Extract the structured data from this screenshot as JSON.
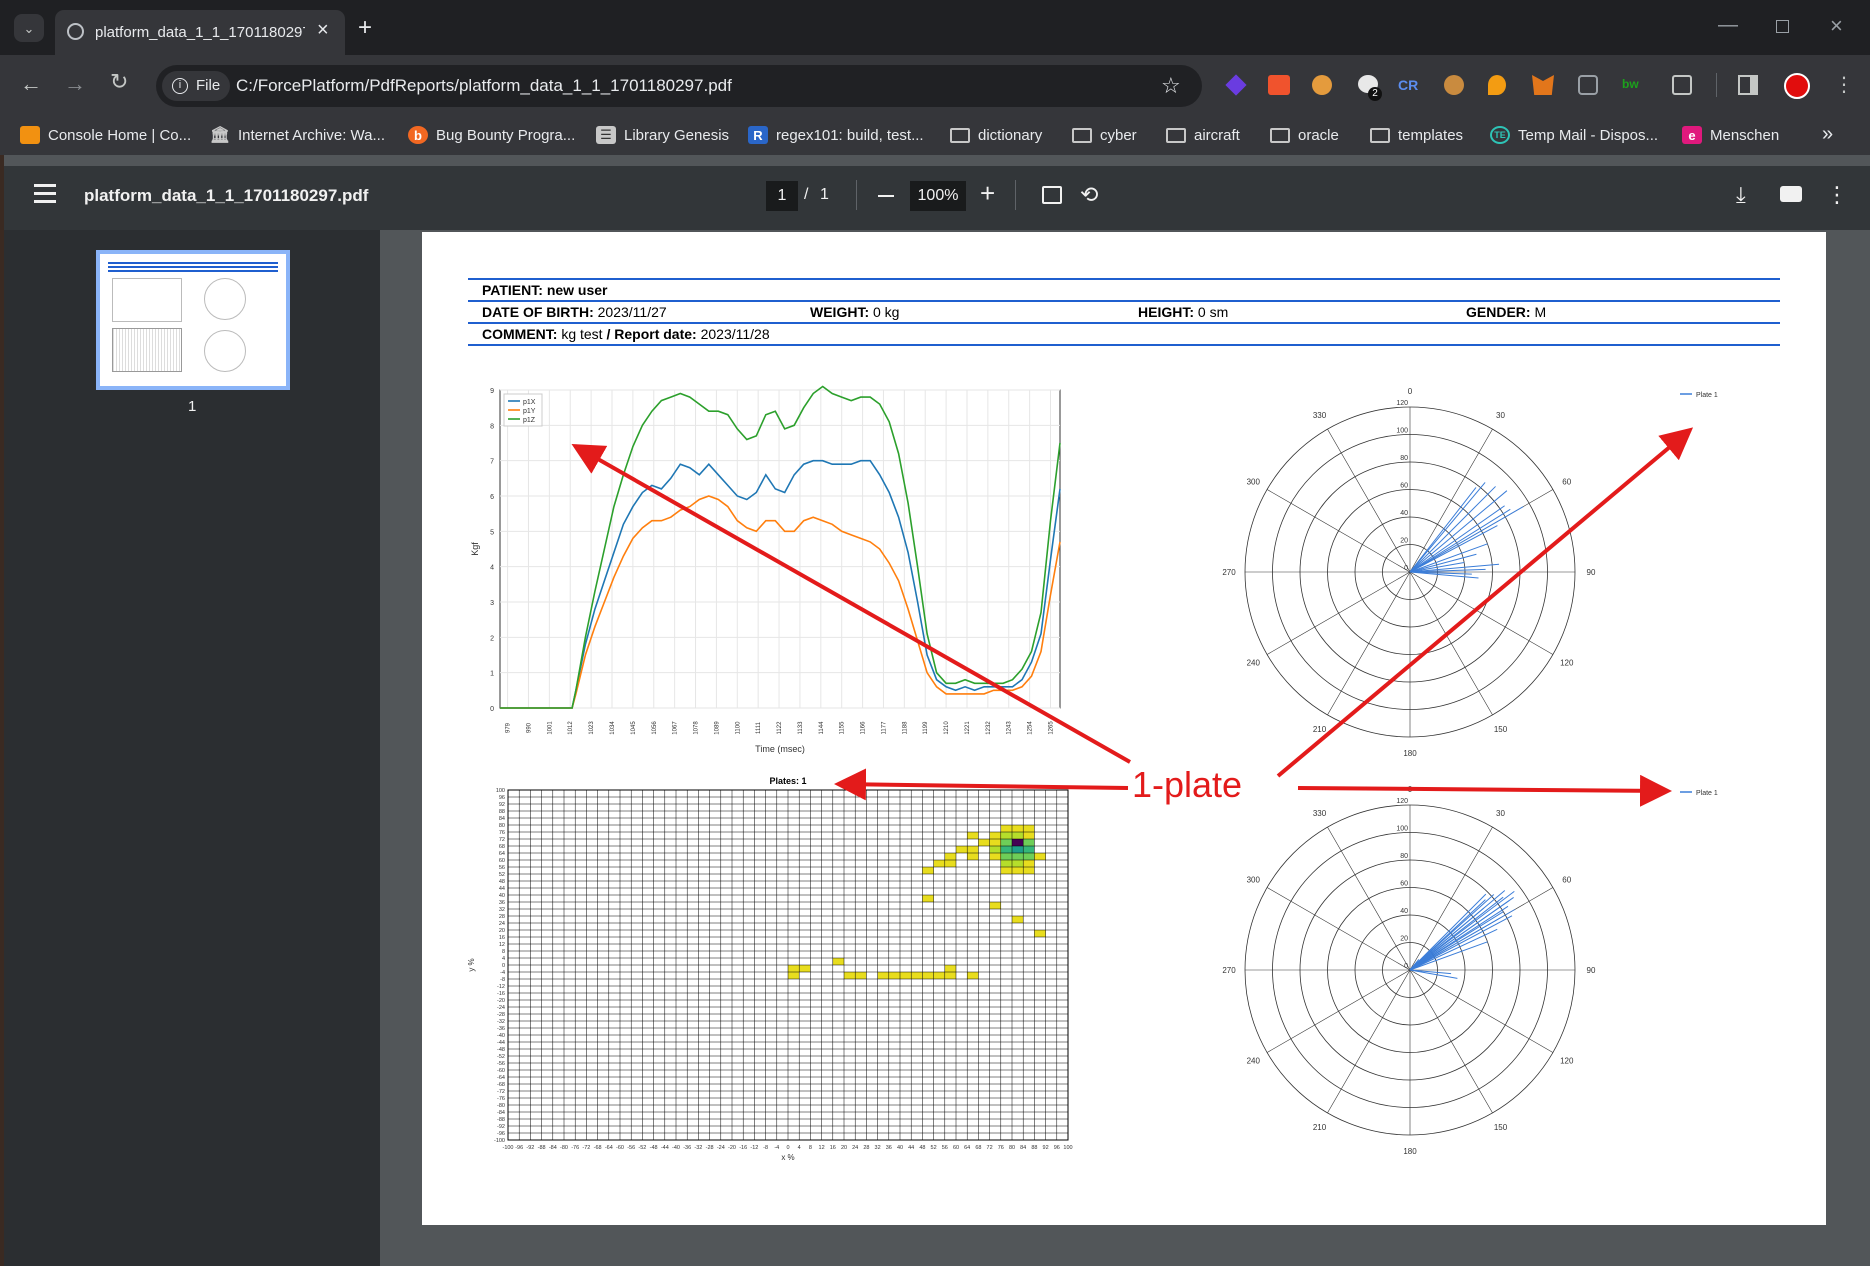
{
  "browser": {
    "tab_title": "platform_data_1_1_1701180297.pdf",
    "address_scheme": "File",
    "address_url": "C:/ForcePlatform/PdfReports/platform_data_1_1_1701180297.pdf",
    "extension_badge": "2",
    "bookmarks": [
      {
        "label": "Console Home | Co...",
        "icon": "aws-icon",
        "color": "#f29111"
      },
      {
        "label": "Internet Archive: Wa...",
        "icon": "archive-icon",
        "color": "#c8c8c8"
      },
      {
        "label": "Bug Bounty Progra...",
        "icon": "bugcrowd-icon",
        "color": "#f26822"
      },
      {
        "label": "Library Genesis",
        "icon": "book-icon",
        "color": "#c8c8c8"
      },
      {
        "label": "regex101: build, test...",
        "icon": "regex-icon",
        "color": "#2a66c8"
      },
      {
        "label": "dictionary",
        "icon": "folder-icon"
      },
      {
        "label": "cyber",
        "icon": "folder-icon"
      },
      {
        "label": "aircraft",
        "icon": "folder-icon"
      },
      {
        "label": "oracle",
        "icon": "folder-icon"
      },
      {
        "label": "templates",
        "icon": "folder-icon"
      },
      {
        "label": "Temp Mail - Dispos...",
        "icon": "tempmail-icon",
        "color": "#2ec4b6"
      },
      {
        "label": "Menschen",
        "icon": "menschen-icon",
        "color": "#e0197d"
      }
    ]
  },
  "pdf_viewer": {
    "file_name": "platform_data_1_1_1701180297.pdf",
    "current_page": "1",
    "page_separator": "/",
    "total_pages": "1",
    "zoom": "100%",
    "thumbnail_label": "1"
  },
  "report": {
    "patient_label": "PATIENT:",
    "patient_value": "new user",
    "dob_label": "DATE OF BIRTH:",
    "dob_value": "2023/11/27",
    "weight_label": "WEIGHT:",
    "weight_value": "0 kg",
    "height_label": "HEIGHT:",
    "height_value": "0 sm",
    "gender_label": "GENDER:",
    "gender_value": "M",
    "comment_label": "COMMENT:",
    "comment_value": "kg test",
    "report_date_label": "/ Report date:",
    "report_date_value": "2023/11/28"
  },
  "annotation": {
    "text": "1-plate",
    "color": "#e31b1b"
  },
  "chart_data": [
    {
      "type": "line",
      "xlabel": "Time (msec)",
      "ylabel": "Kgf",
      "ylim": [
        0,
        9
      ],
      "yticks": [
        "0",
        "1",
        "2",
        "3",
        "4",
        "5",
        "6",
        "7",
        "8",
        "9"
      ],
      "xticks": [
        "979",
        "990",
        "1001",
        "1012",
        "1023",
        "1034",
        "1045",
        "1056",
        "1067",
        "1078",
        "1089",
        "1100",
        "1111",
        "1122",
        "1133",
        "1144",
        "1155",
        "1166",
        "1177",
        "1188",
        "1199",
        "1210",
        "1221",
        "1232",
        "1243",
        "1254",
        "1265"
      ],
      "legend_position": "top-left",
      "grid": true,
      "x": [
        975,
        1000,
        1013,
        1015,
        1020,
        1025,
        1030,
        1035,
        1040,
        1045,
        1050,
        1055,
        1060,
        1065,
        1070,
        1075,
        1080,
        1085,
        1090,
        1095,
        1100,
        1105,
        1110,
        1115,
        1120,
        1125,
        1130,
        1135,
        1140,
        1145,
        1150,
        1155,
        1160,
        1165,
        1170,
        1175,
        1180,
        1185,
        1190,
        1195,
        1200,
        1205,
        1210,
        1215,
        1220,
        1225,
        1230,
        1235,
        1240,
        1245,
        1250,
        1255,
        1260,
        1265,
        1270
      ],
      "series": [
        {
          "name": "p1X",
          "color": "#1f77b4",
          "values": [
            0,
            0,
            0,
            0.5,
            1.8,
            2.8,
            3.6,
            4.4,
            5.2,
            5.7,
            6.1,
            6.3,
            6.2,
            6.5,
            6.9,
            6.8,
            6.6,
            6.9,
            6.6,
            6.3,
            6.0,
            5.9,
            6.1,
            6.6,
            6.2,
            6.1,
            6.6,
            6.9,
            7.0,
            7.0,
            6.9,
            6.9,
            6.9,
            7.0,
            7.0,
            6.6,
            6.1,
            5.4,
            4.4,
            3.0,
            1.5,
            0.8,
            0.6,
            0.5,
            0.6,
            0.5,
            0.6,
            0.6,
            0.6,
            0.6,
            0.8,
            1.3,
            2.1,
            4.2,
            6.2
          ]
        },
        {
          "name": "p1Y",
          "color": "#ff7f0e",
          "values": [
            0,
            0,
            0,
            0.4,
            1.5,
            2.3,
            3.0,
            3.7,
            4.3,
            4.8,
            5.1,
            5.3,
            5.3,
            5.4,
            5.6,
            5.7,
            5.9,
            6.0,
            5.9,
            5.7,
            5.3,
            5.1,
            5.0,
            5.3,
            5.3,
            5.0,
            5.0,
            5.3,
            5.4,
            5.3,
            5.2,
            5.0,
            4.9,
            4.8,
            4.7,
            4.5,
            4.1,
            3.6,
            2.8,
            1.9,
            1.0,
            0.6,
            0.4,
            0.4,
            0.4,
            0.4,
            0.4,
            0.5,
            0.5,
            0.5,
            0.6,
            0.9,
            1.6,
            3.2,
            4.7
          ]
        },
        {
          "name": "p1Z",
          "color": "#2ca02c",
          "values": [
            0,
            0,
            0,
            0.5,
            2.0,
            3.3,
            4.5,
            5.7,
            6.6,
            7.4,
            8.0,
            8.4,
            8.7,
            8.8,
            8.9,
            8.8,
            8.6,
            8.4,
            8.4,
            8.3,
            7.9,
            7.6,
            7.7,
            8.3,
            8.4,
            7.9,
            8.0,
            8.5,
            8.9,
            9.1,
            8.9,
            8.8,
            8.7,
            8.8,
            8.8,
            8.6,
            8.1,
            7.2,
            5.8,
            4.0,
            2.1,
            1.0,
            0.7,
            0.7,
            0.8,
            0.7,
            0.7,
            0.7,
            0.7,
            0.8,
            1.1,
            1.6,
            2.7,
            5.3,
            7.5
          ]
        }
      ]
    },
    {
      "type": "scatter",
      "subtype": "polar",
      "theta_ticks": [
        "0",
        "30",
        "60",
        "90",
        "120",
        "150",
        "180",
        "210",
        "240",
        "270",
        "300",
        "330"
      ],
      "r_ticks": [
        "0",
        "20",
        "40",
        "60",
        "80",
        "100",
        "120"
      ],
      "rlim": [
        0,
        120
      ],
      "legend_position": "top-right",
      "series": [
        {
          "name": "Plate 1",
          "color": "#3b7dd8",
          "theta": [
            40,
            38,
            45,
            50,
            55,
            58,
            62,
            60,
            70,
            75,
            80,
            85,
            88,
            92,
            95
          ],
          "r": [
            85,
            78,
            88,
            92,
            84,
            86,
            72,
            95,
            60,
            50,
            40,
            65,
            55,
            45,
            50
          ]
        }
      ]
    },
    {
      "type": "heatmap",
      "title": "Plates: 1",
      "xlabel": "x %",
      "ylabel": "y %",
      "xlim": [
        -100,
        100
      ],
      "ylim": [
        -100,
        100
      ],
      "xticks": [
        "-100",
        "-96",
        "-92",
        "-88",
        "-84",
        "-80",
        "-76",
        "-72",
        "-68",
        "-64",
        "-60",
        "-56",
        "-52",
        "-48",
        "-44",
        "-40",
        "-36",
        "-32",
        "-28",
        "-24",
        "-20",
        "-16",
        "-12",
        "-8",
        "-4",
        "0",
        "4",
        "8",
        "12",
        "16",
        "20",
        "24",
        "28",
        "32",
        "36",
        "40",
        "44",
        "48",
        "52",
        "56",
        "60",
        "64",
        "68",
        "72",
        "76",
        "80",
        "84",
        "88",
        "92",
        "96",
        "100"
      ],
      "yticks": [
        "100",
        "96",
        "92",
        "88",
        "84",
        "80",
        "76",
        "72",
        "68",
        "64",
        "60",
        "56",
        "52",
        "48",
        "44",
        "40",
        "36",
        "32",
        "28",
        "24",
        "20",
        "16",
        "12",
        "8",
        "4",
        "0",
        "-4",
        "-8",
        "-12",
        "-16",
        "-20",
        "-24",
        "-28",
        "-32",
        "-36",
        "-40",
        "-44",
        "-48",
        "-52",
        "-56",
        "-60",
        "-64",
        "-68",
        "-72",
        "-76",
        "-80",
        "-84",
        "-88",
        "-92",
        "-96",
        "-100"
      ],
      "cells": [
        {
          "x": 76,
          "y": 80,
          "v": 1
        },
        {
          "x": 80,
          "y": 80,
          "v": 1
        },
        {
          "x": 84,
          "y": 80,
          "v": 1
        },
        {
          "x": 64,
          "y": 76,
          "v": 1
        },
        {
          "x": 72,
          "y": 76,
          "v": 1
        },
        {
          "x": 76,
          "y": 76,
          "v": 2
        },
        {
          "x": 80,
          "y": 76,
          "v": 2
        },
        {
          "x": 84,
          "y": 76,
          "v": 1
        },
        {
          "x": 60,
          "y": 68,
          "v": 1
        },
        {
          "x": 64,
          "y": 68,
          "v": 1
        },
        {
          "x": 68,
          "y": 72,
          "v": 1
        },
        {
          "x": 72,
          "y": 72,
          "v": 1
        },
        {
          "x": 76,
          "y": 72,
          "v": 3
        },
        {
          "x": 80,
          "y": 72,
          "v": 6
        },
        {
          "x": 84,
          "y": 72,
          "v": 3
        },
        {
          "x": 56,
          "y": 64,
          "v": 1
        },
        {
          "x": 64,
          "y": 64,
          "v": 1
        },
        {
          "x": 72,
          "y": 68,
          "v": 2
        },
        {
          "x": 76,
          "y": 68,
          "v": 4
        },
        {
          "x": 80,
          "y": 68,
          "v": 5
        },
        {
          "x": 84,
          "y": 68,
          "v": 4
        },
        {
          "x": 88,
          "y": 64,
          "v": 1
        },
        {
          "x": 52,
          "y": 60,
          "v": 1
        },
        {
          "x": 56,
          "y": 60,
          "v": 1
        },
        {
          "x": 72,
          "y": 64,
          "v": 1
        },
        {
          "x": 76,
          "y": 64,
          "v": 3
        },
        {
          "x": 80,
          "y": 64,
          "v": 3
        },
        {
          "x": 84,
          "y": 64,
          "v": 3
        },
        {
          "x": 48,
          "y": 56,
          "v": 1
        },
        {
          "x": 76,
          "y": 60,
          "v": 2
        },
        {
          "x": 80,
          "y": 60,
          "v": 2
        },
        {
          "x": 84,
          "y": 60,
          "v": 1
        },
        {
          "x": 76,
          "y": 56,
          "v": 1
        },
        {
          "x": 80,
          "y": 56,
          "v": 1
        },
        {
          "x": 84,
          "y": 56,
          "v": 1
        },
        {
          "x": 48,
          "y": 40,
          "v": 1
        },
        {
          "x": 72,
          "y": 36,
          "v": 1
        },
        {
          "x": 80,
          "y": 28,
          "v": 1
        },
        {
          "x": 88,
          "y": 20,
          "v": 1
        },
        {
          "x": 0,
          "y": 0,
          "v": 1
        },
        {
          "x": 4,
          "y": 0,
          "v": 1
        },
        {
          "x": 16,
          "y": 4,
          "v": 1
        },
        {
          "x": 0,
          "y": -4,
          "v": 1
        },
        {
          "x": 20,
          "y": -4,
          "v": 1
        },
        {
          "x": 24,
          "y": -4,
          "v": 1
        },
        {
          "x": 32,
          "y": -4,
          "v": 1
        },
        {
          "x": 36,
          "y": -4,
          "v": 1
        },
        {
          "x": 40,
          "y": -4,
          "v": 1
        },
        {
          "x": 44,
          "y": -4,
          "v": 1
        },
        {
          "x": 48,
          "y": -4,
          "v": 1
        },
        {
          "x": 52,
          "y": -4,
          "v": 1
        },
        {
          "x": 56,
          "y": -4,
          "v": 1
        },
        {
          "x": 56,
          "y": 0,
          "v": 1
        },
        {
          "x": 64,
          "y": -4,
          "v": 1
        }
      ]
    },
    {
      "type": "scatter",
      "subtype": "polar",
      "theta_ticks": [
        "0",
        "30",
        "60",
        "90",
        "120",
        "150",
        "180",
        "210",
        "240",
        "270",
        "300",
        "330"
      ],
      "r_ticks": [
        "0",
        "20",
        "40",
        "60",
        "80",
        "100",
        "120"
      ],
      "rlim": [
        0,
        120
      ],
      "legend_position": "top-right",
      "series": [
        {
          "name": "Plate 1",
          "color": "#3b7dd8",
          "theta": [
            48,
            50,
            52,
            45,
            55,
            58,
            60,
            62,
            50,
            47,
            53,
            57,
            65,
            70,
            40,
            42,
            95,
            100,
            60,
            55
          ],
          "r": [
            82,
            90,
            86,
            78,
            92,
            80,
            88,
            84,
            70,
            75,
            95,
            85,
            70,
            60,
            10,
            8,
            30,
            35,
            76,
            88
          ]
        }
      ]
    }
  ]
}
